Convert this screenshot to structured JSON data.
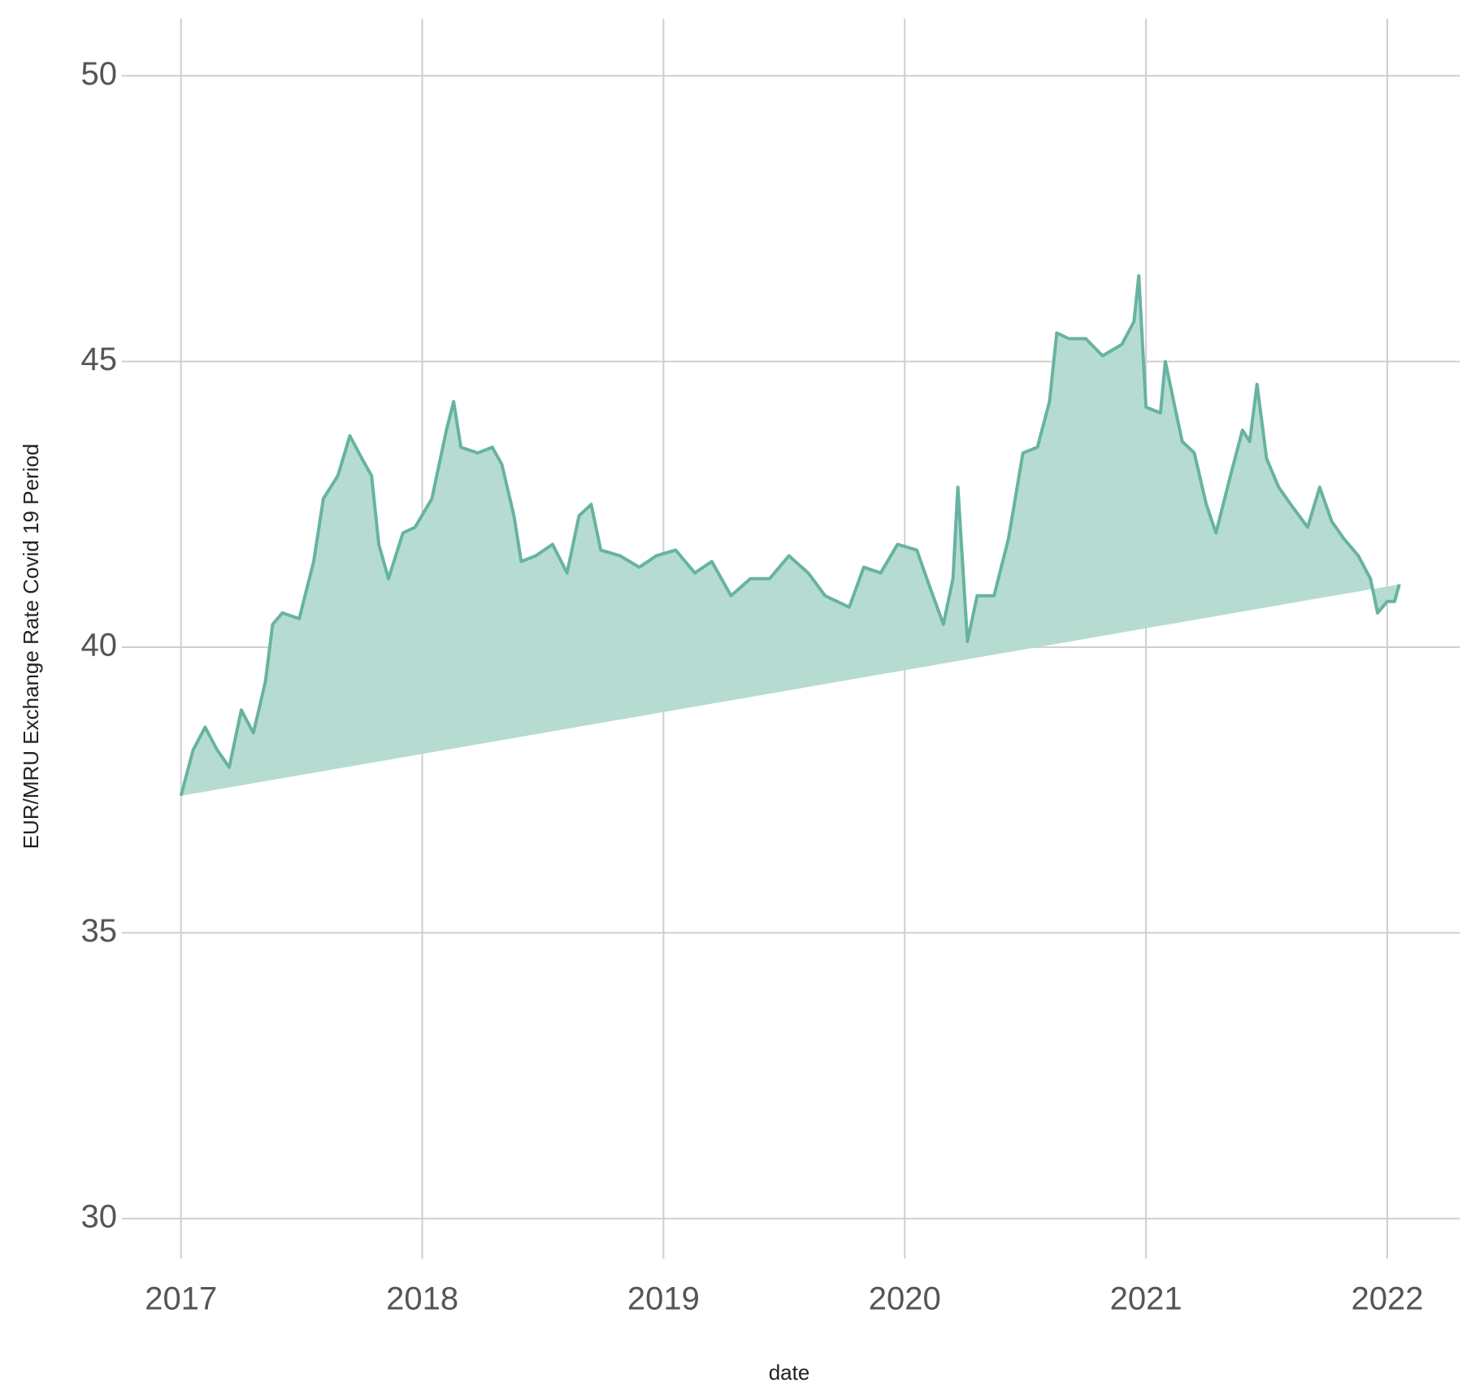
{
  "chart_data": {
    "type": "area",
    "x_label": "date",
    "y_label": "EUR/MRU Exchange Rate Covid 19 Period",
    "x": [
      2017.0,
      2017.05,
      2017.1,
      2017.15,
      2017.2,
      2017.25,
      2017.3,
      2017.35,
      2017.38,
      2017.42,
      2017.49,
      2017.55,
      2017.59,
      2017.65,
      2017.7,
      2017.75,
      2017.79,
      2017.82,
      2017.86,
      2017.92,
      2017.97,
      2018.04,
      2018.1,
      2018.13,
      2018.16,
      2018.23,
      2018.29,
      2018.33,
      2018.38,
      2018.41,
      2018.47,
      2018.54,
      2018.6,
      2018.65,
      2018.7,
      2018.74,
      2018.82,
      2018.9,
      2018.97,
      2019.05,
      2019.13,
      2019.2,
      2019.28,
      2019.36,
      2019.44,
      2019.52,
      2019.6,
      2019.67,
      2019.77,
      2019.83,
      2019.9,
      2019.97,
      2020.05,
      2020.1,
      2020.16,
      2020.2,
      2020.22,
      2020.26,
      2020.3,
      2020.37,
      2020.43,
      2020.49,
      2020.55,
      2020.6,
      2020.63,
      2020.68,
      2020.75,
      2020.82,
      2020.9,
      2020.95,
      2020.97,
      2021.0,
      2021.06,
      2021.08,
      2021.12,
      2021.15,
      2021.2,
      2021.25,
      2021.29,
      2021.35,
      2021.4,
      2021.43,
      2021.46,
      2021.5,
      2021.55,
      2021.6,
      2021.67,
      2021.72,
      2021.77,
      2021.82,
      2021.88,
      2021.93,
      2021.96,
      2022.0,
      2022.03,
      2022.05
    ],
    "series": [
      {
        "color": "#67b3a1",
        "fill": "#b6dcd2",
        "values": [
          37.4,
          38.2,
          38.6,
          38.2,
          37.9,
          38.9,
          38.5,
          39.4,
          40.4,
          40.6,
          40.5,
          41.5,
          42.6,
          43.0,
          43.7,
          43.3,
          43.0,
          41.8,
          41.2,
          42.0,
          42.1,
          42.6,
          43.8,
          44.3,
          43.5,
          43.4,
          43.5,
          43.2,
          42.3,
          41.5,
          41.6,
          41.8,
          41.3,
          42.3,
          42.5,
          41.7,
          41.6,
          41.4,
          41.6,
          41.7,
          41.3,
          41.5,
          40.9,
          41.2,
          41.2,
          41.6,
          41.3,
          40.9,
          40.7,
          41.4,
          41.3,
          41.8,
          41.7,
          41.1,
          40.4,
          41.2,
          42.8,
          40.1,
          40.9,
          40.9,
          41.9,
          43.4,
          43.5,
          44.3,
          45.5,
          45.4,
          45.4,
          45.1,
          45.3,
          45.7,
          46.5,
          44.2,
          44.1,
          45.0,
          44.2,
          43.6,
          43.4,
          42.5,
          42.0,
          43.0,
          43.8,
          43.6,
          44.6,
          43.3,
          42.8,
          42.5,
          42.1,
          42.8,
          42.2,
          41.9,
          41.6,
          41.2,
          40.6,
          40.8,
          40.8,
          41.1
        ]
      }
    ],
    "xlim": [
      2016.755,
      2022.3
    ],
    "ylim": [
      29.3,
      51.0
    ],
    "xticks": [
      2017,
      2018,
      2019,
      2020,
      2021,
      2022
    ],
    "yticks": [
      30,
      35,
      40,
      45,
      50
    ],
    "grid": true
  }
}
